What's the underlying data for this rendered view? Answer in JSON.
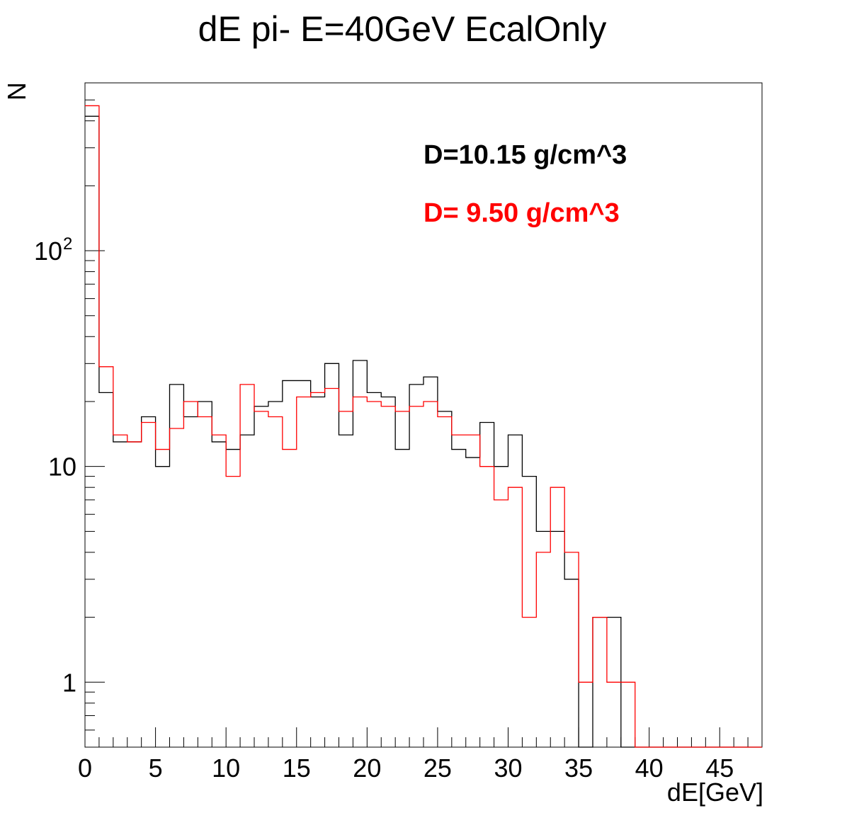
{
  "chart_data": {
    "type": "histogram",
    "title": "dE pi- E=40GeV EcalOnly",
    "xlabel": "dE[GeV]",
    "ylabel": "N",
    "xlim": [
      0,
      48
    ],
    "ylim": [
      0.5,
      600
    ],
    "yscale": "log",
    "grid": false,
    "bin_width": 1,
    "x_ticks": [
      "0",
      "5",
      "10",
      "15",
      "20",
      "25",
      "30",
      "35",
      "40",
      "45"
    ],
    "x_tick_values": [
      0,
      5,
      10,
      15,
      20,
      25,
      30,
      35,
      40,
      45
    ],
    "y_ticks": [
      {
        "value": 1,
        "label": "1"
      },
      {
        "value": 10,
        "label": "10"
      },
      {
        "value": 100,
        "label": "10",
        "sup": "2"
      }
    ],
    "series": [
      {
        "name": "D=10.15 g/cm^3",
        "color": "#000000",
        "values": [
          420,
          22,
          13,
          13,
          17,
          10,
          24,
          17,
          20,
          13,
          12,
          14,
          19,
          20,
          25,
          25,
          21,
          30,
          14,
          31,
          22,
          21,
          12,
          24,
          26,
          18,
          12,
          11,
          16,
          10,
          14,
          9,
          5,
          5,
          3,
          0,
          2,
          2,
          0,
          0,
          0,
          0,
          0,
          0,
          0,
          0,
          0,
          0
        ]
      },
      {
        "name": "D= 9.50 g/cm^3",
        "color": "#ff0000",
        "values": [
          470,
          29,
          14,
          13,
          16,
          12,
          15,
          20,
          17,
          14,
          9,
          24,
          18,
          17,
          12,
          21,
          22,
          23,
          18,
          21,
          20,
          19,
          18,
          19,
          20,
          17,
          14,
          14,
          10,
          7,
          8,
          2,
          4,
          8,
          4,
          1,
          2,
          1,
          1,
          0,
          0,
          0,
          0,
          0,
          0,
          0,
          0,
          0
        ]
      }
    ],
    "legend": {
      "placement": "top-right",
      "entries": [
        "D=10.15 g/cm^3",
        "D= 9.50 g/cm^3"
      ]
    }
  }
}
